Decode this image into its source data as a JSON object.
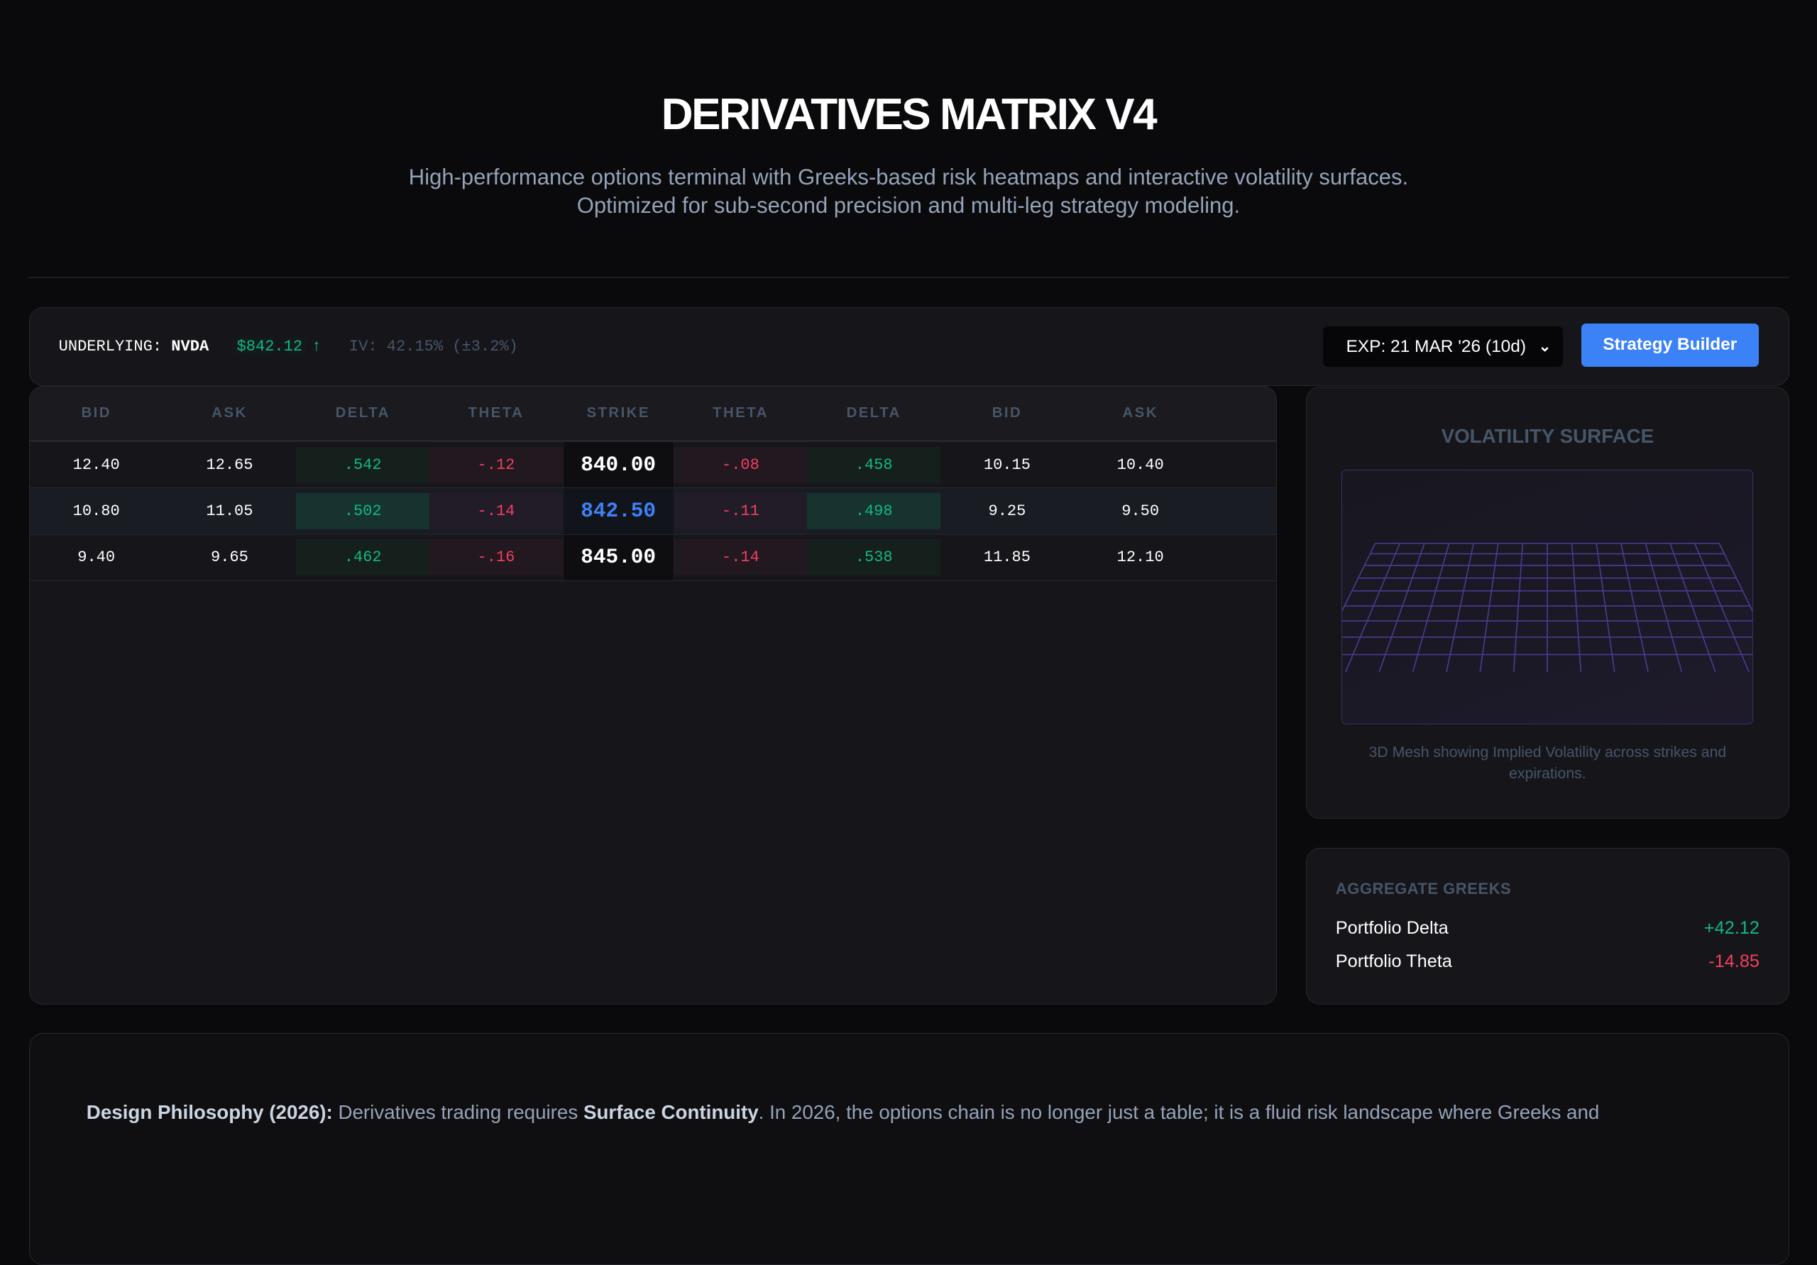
{
  "hero": {
    "title": "DERIVATIVES MATRIX V4",
    "subtitle_line1": "High-performance options terminal with Greeks-based risk heatmaps and interactive volatility surfaces.",
    "subtitle_line2": "Optimized for sub-second precision and multi-leg strategy modeling."
  },
  "topbar": {
    "underlying_label": "UNDERLYING:",
    "symbol": "NVDA",
    "price": "$842.12 ↑",
    "iv": "IV: 42.15% (±3.2%)",
    "expiry_select": "EXP: 21 MAR '26 (10d)",
    "strategy_button": "Strategy Builder"
  },
  "chain": {
    "headers": [
      "BID",
      "ASK",
      "DELTA",
      "THETA",
      "STRIKE",
      "THETA",
      "DELTA",
      "BID",
      "ASK"
    ],
    "rows": [
      {
        "call_bid": "12.40",
        "call_ask": "12.65",
        "call_delta": ".542",
        "call_theta": "-.12",
        "strike": "840.00",
        "put_theta": "-.08",
        "put_delta": ".458",
        "put_bid": "10.15",
        "put_ask": "10.40",
        "atm": false
      },
      {
        "call_bid": "10.80",
        "call_ask": "11.05",
        "call_delta": ".502",
        "call_theta": "-.14",
        "strike": "842.50",
        "put_theta": "-.11",
        "put_delta": ".498",
        "put_bid": "9.25",
        "put_ask": "9.50",
        "atm": true
      },
      {
        "call_bid": "9.40",
        "call_ask": "9.65",
        "call_delta": ".462",
        "call_theta": "-.16",
        "strike": "845.00",
        "put_theta": "-.14",
        "put_delta": ".538",
        "put_bid": "11.85",
        "put_ask": "12.10",
        "atm": false
      }
    ]
  },
  "vol_surface": {
    "title": "VOLATILITY SURFACE",
    "caption": "3D Mesh showing Implied Volatility across strikes and expirations."
  },
  "aggregate": {
    "title": "AGGREGATE GREEKS",
    "items": [
      {
        "label": "Portfolio Delta",
        "value": "+42.12"
      },
      {
        "label": "Portfolio Theta",
        "value": "-14.85"
      }
    ]
  },
  "philosophy": {
    "lead": "Design Philosophy (2026):",
    "text1": " Derivatives trading requires ",
    "emphasis": "Surface Continuity",
    "text2": ". In 2026, the options chain is no longer just a table; it is a fluid risk landscape where Greeks and"
  },
  "colors": {
    "accent": "#3b82f6",
    "positive": "#10b981",
    "negative": "#f43f5e",
    "mesh": "#4c3a8f"
  }
}
